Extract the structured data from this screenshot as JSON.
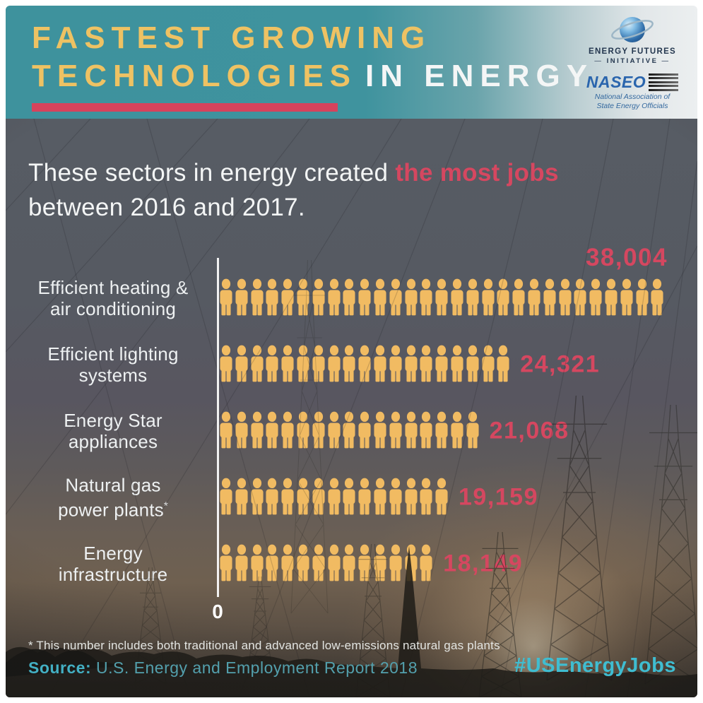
{
  "header": {
    "title_line1": "FASTEST GROWING",
    "title_line2_highlight": "TECHNOLOGIES",
    "title_line2_rest": "IN ENERGY",
    "title_color": "#eec263",
    "underline_color": "#d6435c",
    "bg_teal": "#3f939e",
    "logos": {
      "efi": {
        "name_line1": "ENERGY FUTURES",
        "name_line2": "INITIATIVE"
      },
      "naseo": {
        "name": "NASEO",
        "sub_line1": "National Association of",
        "sub_line2": "State Energy Officials"
      }
    }
  },
  "intro": {
    "line1_pre": "These sectors in energy created ",
    "line1_highlight": "the most jobs",
    "line2": "between 2016 and 2017.",
    "highlight_color": "#d54760"
  },
  "chart": {
    "zero_label": "0",
    "icon_color": "#f1bb62",
    "value_color": "#d54760",
    "rows": [
      {
        "label_lines": [
          "Efficient heating &",
          "air conditioning"
        ],
        "value_label": "38,004",
        "icons": 29,
        "value_position": "above"
      },
      {
        "label_lines": [
          "Efficient lighting",
          "systems"
        ],
        "value_label": "24,321",
        "icons": 19,
        "value_position": "right"
      },
      {
        "label_lines": [
          "Energy Star",
          "appliances"
        ],
        "value_label": "21,068",
        "icons": 17,
        "value_position": "right"
      },
      {
        "label_lines": [
          "Natural gas",
          "power plants"
        ],
        "label_sup": "*",
        "value_label": "19,159",
        "icons": 15,
        "value_position": "right"
      },
      {
        "label_lines": [
          "Energy",
          "infrastructure"
        ],
        "value_label": "18,149",
        "icons": 14,
        "value_position": "right"
      }
    ]
  },
  "chart_data": {
    "type": "bar",
    "subtype": "pictograph",
    "orientation": "horizontal",
    "title": "FASTEST GROWING TECHNOLOGIES IN ENERGY",
    "subtitle": "These sectors in energy created the most jobs between 2016 and 2017.",
    "categories": [
      "Efficient heating & air conditioning",
      "Efficient lighting systems",
      "Energy Star appliances",
      "Natural gas power plants*",
      "Energy infrastructure"
    ],
    "values": [
      38004,
      24321,
      21068,
      19159,
      18149
    ],
    "value_labels": [
      "38,004",
      "24,321",
      "21,068",
      "19,159",
      "18,149"
    ],
    "icon_counts": [
      29,
      19,
      17,
      15,
      14
    ],
    "unit_icon": "person-icon",
    "axis_zero_label": "0",
    "xlabel": "",
    "ylabel": "",
    "icon_color": "#f1bb62",
    "value_color": "#d54760",
    "legend": null,
    "grid": false
  },
  "footer": {
    "note": "* This number includes both traditional and advanced low-emissions natural gas plants",
    "source_label": "Source:",
    "source_text": "U.S. Energy and Employment Report 2018",
    "hashtag": "#USEnergyJobs"
  }
}
